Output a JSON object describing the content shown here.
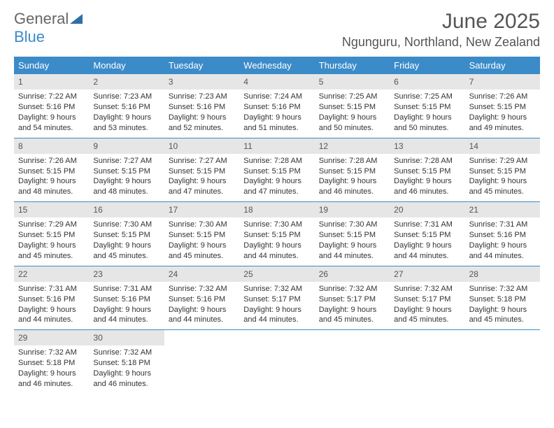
{
  "brand": {
    "word1": "General",
    "word2": "Blue"
  },
  "title": "June 2025",
  "location": "Ngunguru, Northland, New Zealand",
  "colors": {
    "header_bg": "#3b8bc9",
    "header_text": "#ffffff",
    "daynum_bg": "#e6e6e6",
    "week_border": "#3b8bc9",
    "body_text": "#333333",
    "title_text": "#555555",
    "brand_blue": "#3b8bc9"
  },
  "fonts": {
    "title_size": 30,
    "location_size": 18,
    "head_size": 13,
    "body_size": 11
  },
  "weekdays": [
    "Sunday",
    "Monday",
    "Tuesday",
    "Wednesday",
    "Thursday",
    "Friday",
    "Saturday"
  ],
  "weeks": [
    [
      {
        "n": "1",
        "sunrise": "Sunrise: 7:22 AM",
        "sunset": "Sunset: 5:16 PM",
        "daylight": "Daylight: 9 hours and 54 minutes."
      },
      {
        "n": "2",
        "sunrise": "Sunrise: 7:23 AM",
        "sunset": "Sunset: 5:16 PM",
        "daylight": "Daylight: 9 hours and 53 minutes."
      },
      {
        "n": "3",
        "sunrise": "Sunrise: 7:23 AM",
        "sunset": "Sunset: 5:16 PM",
        "daylight": "Daylight: 9 hours and 52 minutes."
      },
      {
        "n": "4",
        "sunrise": "Sunrise: 7:24 AM",
        "sunset": "Sunset: 5:16 PM",
        "daylight": "Daylight: 9 hours and 51 minutes."
      },
      {
        "n": "5",
        "sunrise": "Sunrise: 7:25 AM",
        "sunset": "Sunset: 5:15 PM",
        "daylight": "Daylight: 9 hours and 50 minutes."
      },
      {
        "n": "6",
        "sunrise": "Sunrise: 7:25 AM",
        "sunset": "Sunset: 5:15 PM",
        "daylight": "Daylight: 9 hours and 50 minutes."
      },
      {
        "n": "7",
        "sunrise": "Sunrise: 7:26 AM",
        "sunset": "Sunset: 5:15 PM",
        "daylight": "Daylight: 9 hours and 49 minutes."
      }
    ],
    [
      {
        "n": "8",
        "sunrise": "Sunrise: 7:26 AM",
        "sunset": "Sunset: 5:15 PM",
        "daylight": "Daylight: 9 hours and 48 minutes."
      },
      {
        "n": "9",
        "sunrise": "Sunrise: 7:27 AM",
        "sunset": "Sunset: 5:15 PM",
        "daylight": "Daylight: 9 hours and 48 minutes."
      },
      {
        "n": "10",
        "sunrise": "Sunrise: 7:27 AM",
        "sunset": "Sunset: 5:15 PM",
        "daylight": "Daylight: 9 hours and 47 minutes."
      },
      {
        "n": "11",
        "sunrise": "Sunrise: 7:28 AM",
        "sunset": "Sunset: 5:15 PM",
        "daylight": "Daylight: 9 hours and 47 minutes."
      },
      {
        "n": "12",
        "sunrise": "Sunrise: 7:28 AM",
        "sunset": "Sunset: 5:15 PM",
        "daylight": "Daylight: 9 hours and 46 minutes."
      },
      {
        "n": "13",
        "sunrise": "Sunrise: 7:28 AM",
        "sunset": "Sunset: 5:15 PM",
        "daylight": "Daylight: 9 hours and 46 minutes."
      },
      {
        "n": "14",
        "sunrise": "Sunrise: 7:29 AM",
        "sunset": "Sunset: 5:15 PM",
        "daylight": "Daylight: 9 hours and 45 minutes."
      }
    ],
    [
      {
        "n": "15",
        "sunrise": "Sunrise: 7:29 AM",
        "sunset": "Sunset: 5:15 PM",
        "daylight": "Daylight: 9 hours and 45 minutes."
      },
      {
        "n": "16",
        "sunrise": "Sunrise: 7:30 AM",
        "sunset": "Sunset: 5:15 PM",
        "daylight": "Daylight: 9 hours and 45 minutes."
      },
      {
        "n": "17",
        "sunrise": "Sunrise: 7:30 AM",
        "sunset": "Sunset: 5:15 PM",
        "daylight": "Daylight: 9 hours and 45 minutes."
      },
      {
        "n": "18",
        "sunrise": "Sunrise: 7:30 AM",
        "sunset": "Sunset: 5:15 PM",
        "daylight": "Daylight: 9 hours and 44 minutes."
      },
      {
        "n": "19",
        "sunrise": "Sunrise: 7:30 AM",
        "sunset": "Sunset: 5:15 PM",
        "daylight": "Daylight: 9 hours and 44 minutes."
      },
      {
        "n": "20",
        "sunrise": "Sunrise: 7:31 AM",
        "sunset": "Sunset: 5:15 PM",
        "daylight": "Daylight: 9 hours and 44 minutes."
      },
      {
        "n": "21",
        "sunrise": "Sunrise: 7:31 AM",
        "sunset": "Sunset: 5:16 PM",
        "daylight": "Daylight: 9 hours and 44 minutes."
      }
    ],
    [
      {
        "n": "22",
        "sunrise": "Sunrise: 7:31 AM",
        "sunset": "Sunset: 5:16 PM",
        "daylight": "Daylight: 9 hours and 44 minutes."
      },
      {
        "n": "23",
        "sunrise": "Sunrise: 7:31 AM",
        "sunset": "Sunset: 5:16 PM",
        "daylight": "Daylight: 9 hours and 44 minutes."
      },
      {
        "n": "24",
        "sunrise": "Sunrise: 7:32 AM",
        "sunset": "Sunset: 5:16 PM",
        "daylight": "Daylight: 9 hours and 44 minutes."
      },
      {
        "n": "25",
        "sunrise": "Sunrise: 7:32 AM",
        "sunset": "Sunset: 5:17 PM",
        "daylight": "Daylight: 9 hours and 44 minutes."
      },
      {
        "n": "26",
        "sunrise": "Sunrise: 7:32 AM",
        "sunset": "Sunset: 5:17 PM",
        "daylight": "Daylight: 9 hours and 45 minutes."
      },
      {
        "n": "27",
        "sunrise": "Sunrise: 7:32 AM",
        "sunset": "Sunset: 5:17 PM",
        "daylight": "Daylight: 9 hours and 45 minutes."
      },
      {
        "n": "28",
        "sunrise": "Sunrise: 7:32 AM",
        "sunset": "Sunset: 5:18 PM",
        "daylight": "Daylight: 9 hours and 45 minutes."
      }
    ],
    [
      {
        "n": "29",
        "sunrise": "Sunrise: 7:32 AM",
        "sunset": "Sunset: 5:18 PM",
        "daylight": "Daylight: 9 hours and 46 minutes."
      },
      {
        "n": "30",
        "sunrise": "Sunrise: 7:32 AM",
        "sunset": "Sunset: 5:18 PM",
        "daylight": "Daylight: 9 hours and 46 minutes."
      },
      {
        "empty": true
      },
      {
        "empty": true
      },
      {
        "empty": true
      },
      {
        "empty": true
      },
      {
        "empty": true
      }
    ]
  ]
}
